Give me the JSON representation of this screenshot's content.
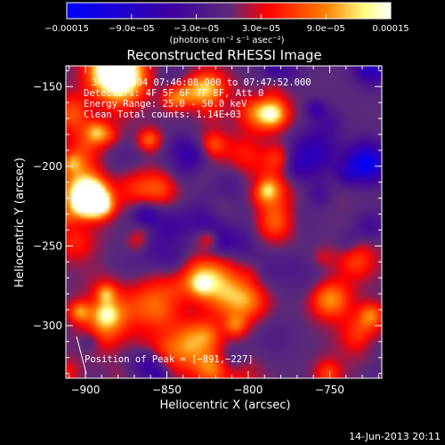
{
  "chart_data": {
    "type": "heatmap",
    "title": "Reconstructed RHESSI Image",
    "xlabel": "Heliocentric X (arcsec)",
    "ylabel": "Heliocentric Y (arcsec)",
    "xlim": [
      -912,
      -718
    ],
    "ylim": [
      -333,
      -137
    ],
    "x_ticks": [
      -900,
      -850,
      -800,
      -750
    ],
    "x_tick_labels": [
      "−900",
      "−850",
      "−800",
      "−750"
    ],
    "y_ticks": [
      -150,
      -200,
      -250,
      -300
    ],
    "y_tick_labels": [
      "−150",
      "−200",
      "−250",
      "−300"
    ],
    "colorbar": {
      "range": [
        -0.00015,
        0.00015
      ],
      "ticks": [
        -0.00015,
        -9e-05,
        -3e-05,
        3e-05,
        9e-05,
        0.00015
      ],
      "tick_labels": [
        "−0.00015",
        "−9.0e−05",
        "−3.0e−05",
        "3.0e−05",
        "9.0e−05",
        "0.00015"
      ],
      "units_label": "(photons cm⁻² s⁻¹ asec⁻²)",
      "colors": [
        "#0000ff",
        "#3c00a0",
        "#5a2a7a",
        "#ff0000",
        "#ff8000",
        "#ffff80",
        "#ffffff"
      ]
    },
    "peak": {
      "x": -891,
      "y": -227
    }
  },
  "annotations": {
    "time_range": "3-Apr-2004 07:46:08.000 to 07:47:52.000",
    "detectors": "Detectors: 4F 5F 6F 7F 8F, Att 0",
    "energy": "Energy Range: 25.0 - 50.0 keV",
    "clean": "Clean    Total counts: 1.14E+03",
    "peak_label": "Position of Peak = [−891,−227]"
  },
  "footer": {
    "timestamp": "14-Jun-2013 20:11"
  }
}
